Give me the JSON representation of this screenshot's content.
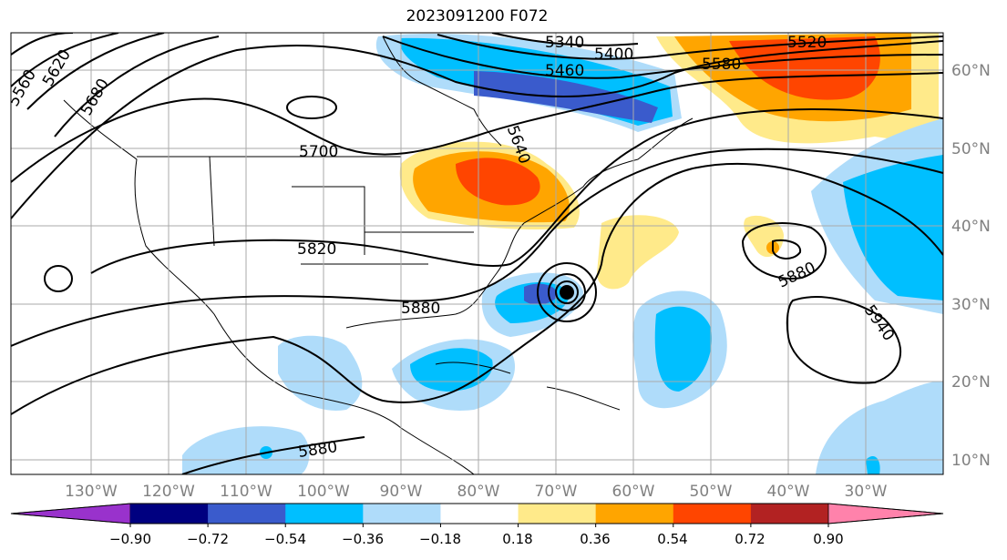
{
  "title": "2023091200 F072",
  "map": {
    "lon_labels": [
      "130°W",
      "120°W",
      "110°W",
      "100°W",
      "90°W",
      "80°W",
      "70°W",
      "60°W",
      "50°W",
      "40°W",
      "30°W"
    ],
    "lat_labels": [
      "60°N",
      "50°N",
      "40°N",
      "30°N",
      "20°N",
      "10°N"
    ],
    "contour_labels": [
      "5340",
      "5400",
      "5460",
      "5520",
      "5580",
      "5640",
      "5700",
      "5820",
      "5880",
      "5880",
      "5880",
      "5940",
      "5560",
      "5620",
      "5680"
    ]
  },
  "colorbar": {
    "ticks": [
      "−0.90",
      "−0.72",
      "−0.54",
      "−0.36",
      "−0.18",
      "0.18",
      "0.36",
      "0.54",
      "0.72",
      "0.90"
    ],
    "colors": [
      "#9932cc",
      "#000080",
      "#3a5bcc",
      "#00bfff",
      "#afdcfa",
      "#ffffff",
      "#ffea8a",
      "#ffa500",
      "#ff4500",
      "#b22222",
      "#ff82ab"
    ]
  }
}
